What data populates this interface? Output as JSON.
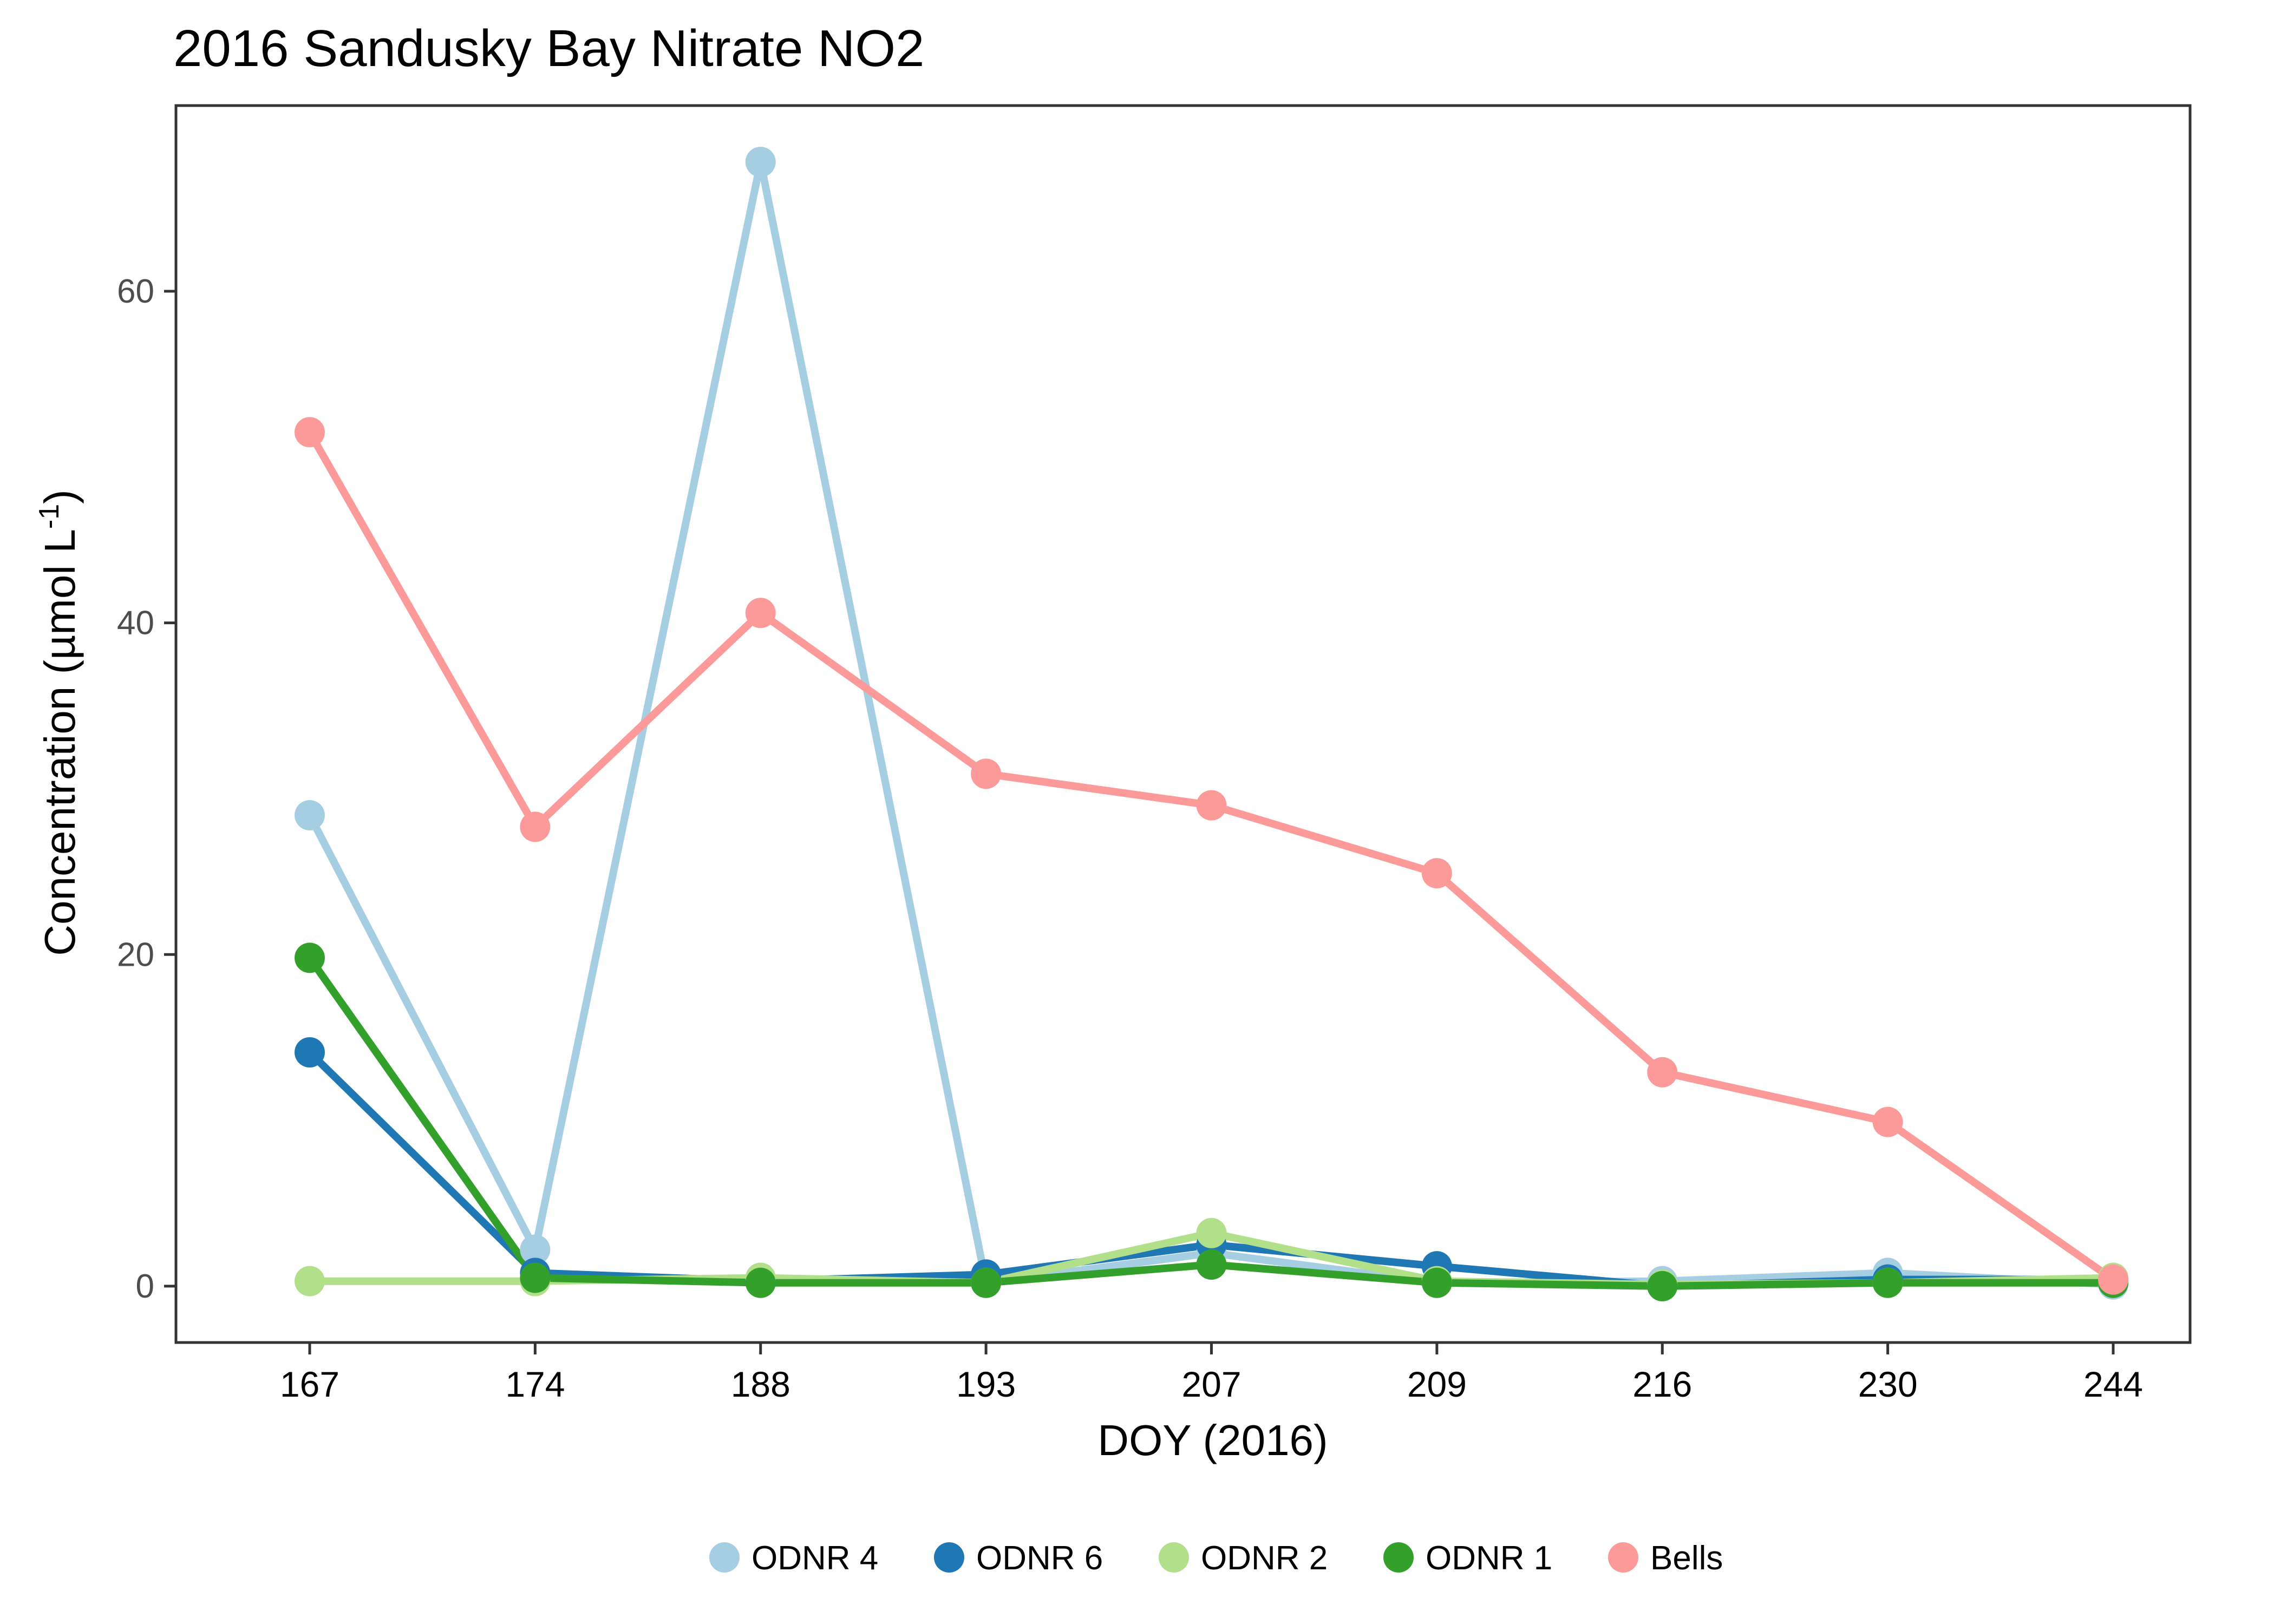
{
  "chart_data": {
    "type": "line",
    "title": "2016 Sandusky Bay Nitrate NO2",
    "xlabel": "DOY (2016)",
    "ylabel": "Concentration (µmol L",
    "ylabel_superscript": "-1",
    "ylabel_close": ")",
    "categories": [
      "167",
      "174",
      "188",
      "193",
      "207",
      "209",
      "216",
      "230",
      "244"
    ],
    "y_ticks": [
      0,
      20,
      40,
      60
    ],
    "ylim": [
      -3.4,
      71.2
    ],
    "grid": false,
    "legend_position": "bottom",
    "series": [
      {
        "name": "ODNR 4",
        "color": "#a6cee3",
        "values": [
          28.4,
          2.2,
          67.8,
          0.2,
          2.0,
          0.2,
          0.3,
          0.8,
          0.1
        ]
      },
      {
        "name": "ODNR 6",
        "color": "#1f78b4",
        "values": [
          14.1,
          0.8,
          0.3,
          0.7,
          2.5,
          1.2,
          0.0,
          0.4,
          0.4
        ]
      },
      {
        "name": "ODNR 2",
        "color": "#b2df8a",
        "values": [
          0.3,
          0.3,
          0.5,
          0.2,
          3.2,
          0.3,
          0.1,
          0.2,
          0.5
        ]
      },
      {
        "name": "ODNR 1",
        "color": "#33a02c",
        "values": [
          19.8,
          0.5,
          0.2,
          0.2,
          1.3,
          0.2,
          0.0,
          0.2,
          0.2
        ]
      },
      {
        "name": "Bells",
        "color": "#fb9a99",
        "values": [
          51.5,
          27.7,
          40.6,
          30.9,
          29.0,
          24.9,
          12.9,
          9.9,
          0.4
        ]
      }
    ]
  }
}
